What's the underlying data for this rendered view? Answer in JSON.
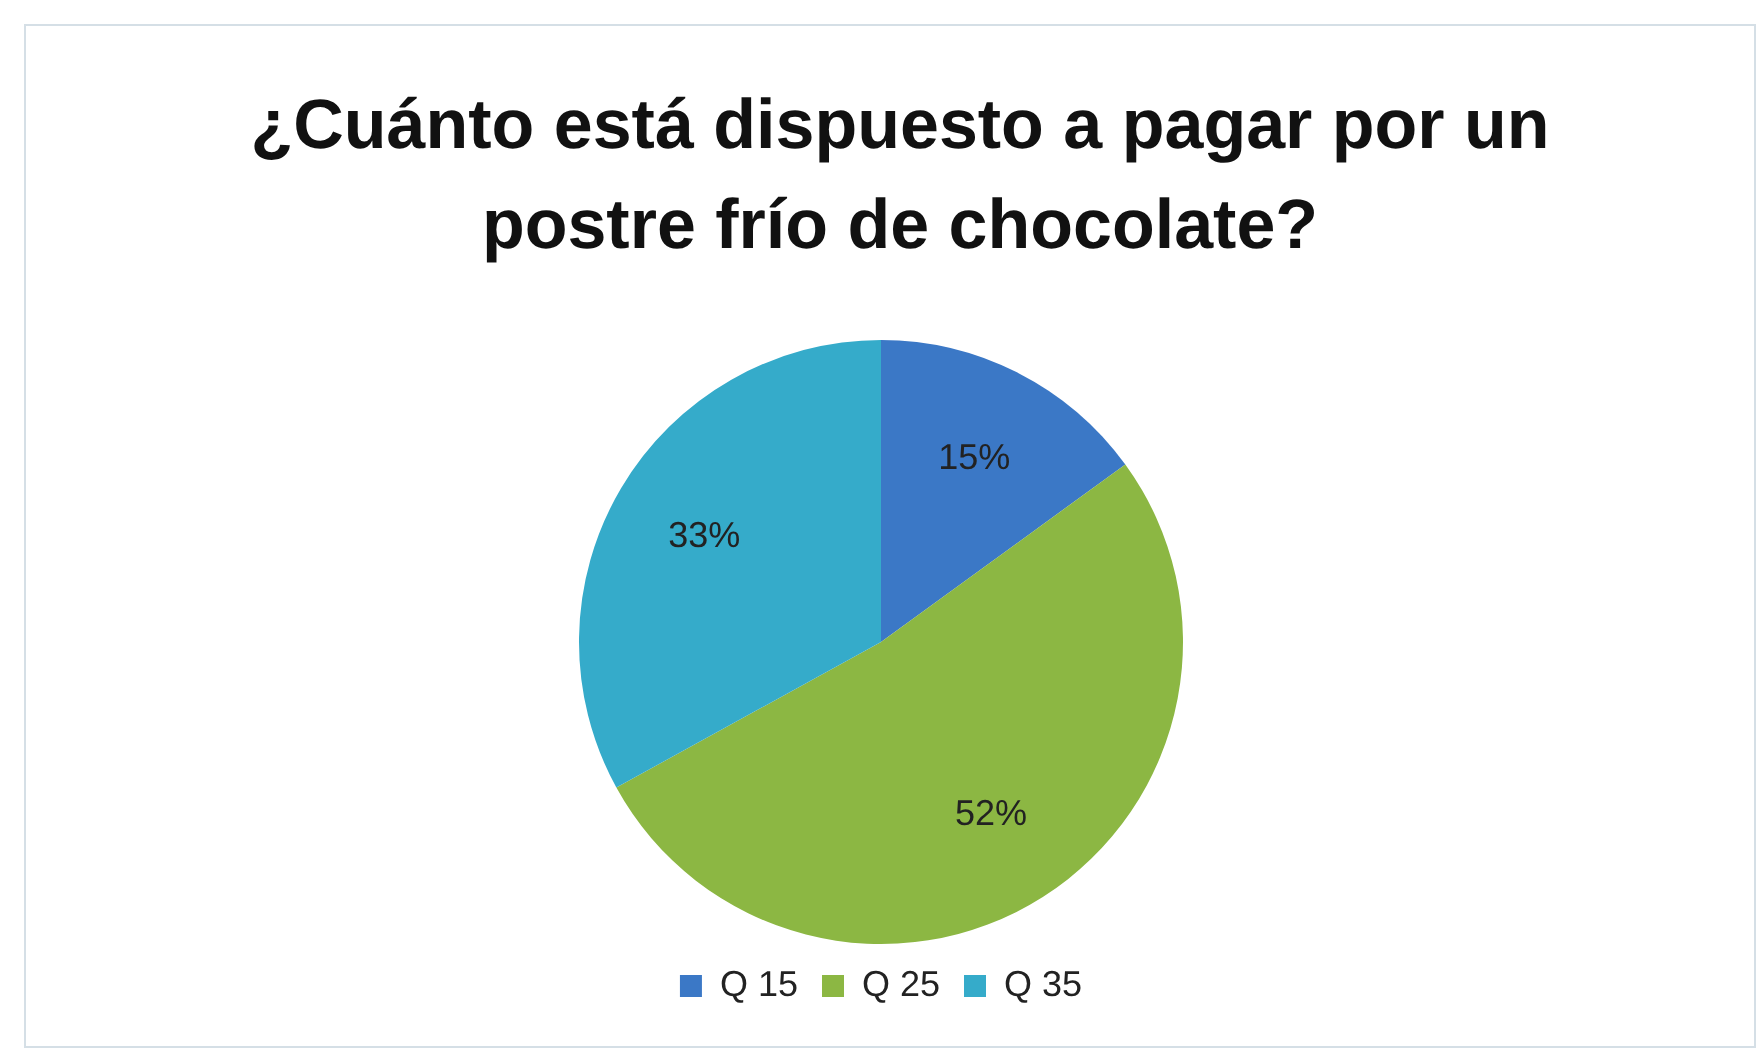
{
  "chart_data": {
    "type": "pie",
    "title": "¿Cuánto está dispuesto a pagar por un postre frío de chocolate?",
    "categories": [
      "Q 15",
      "Q 25",
      "Q 35"
    ],
    "values": [
      15,
      52,
      33
    ],
    "value_labels": [
      "15%",
      "52%",
      "33%"
    ],
    "colors": [
      "#3b78c6",
      "#8cb743",
      "#35abca"
    ],
    "legend": "bottom"
  }
}
